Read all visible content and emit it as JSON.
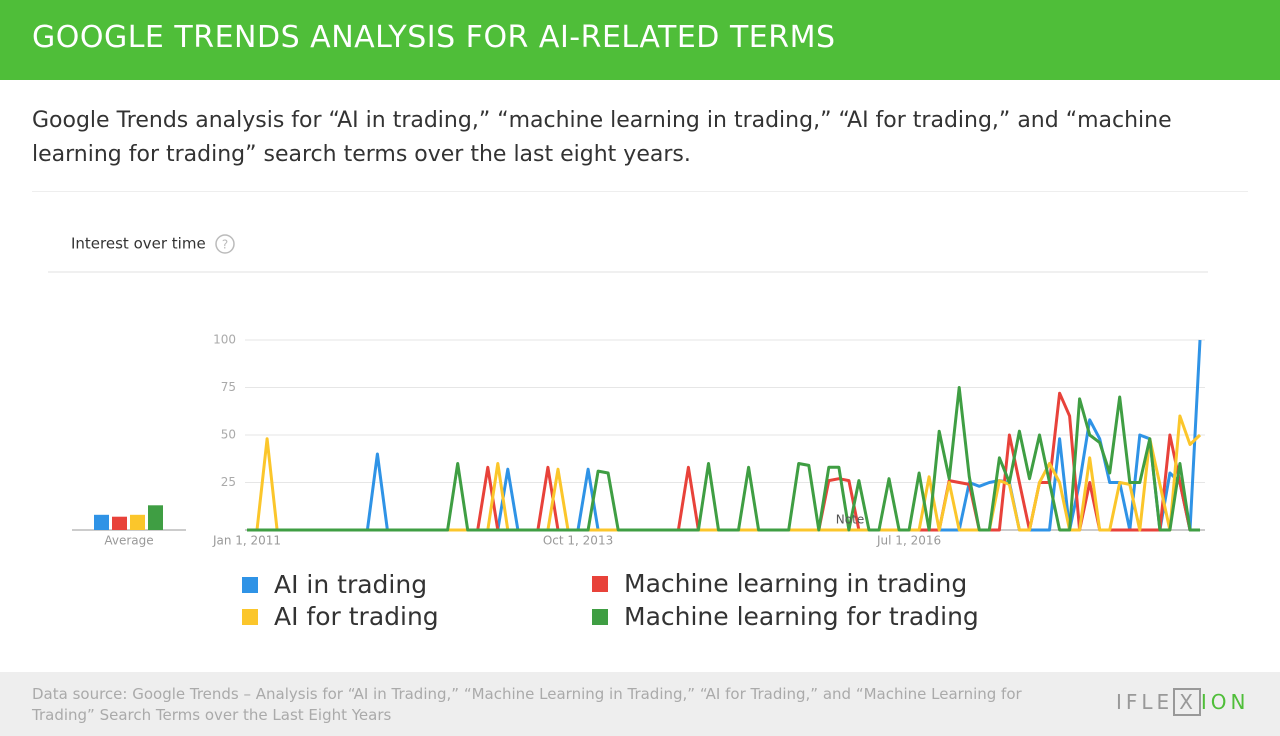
{
  "header": {
    "title": "GOOGLE TRENDS ANALYSIS FOR AI-RELATED TERMS"
  },
  "description": "Google Trends analysis for “AI in trading,” “machine learning in trading,” “AI for trading,” and “machine learning for trading” search terms over the last eight years.",
  "chart_data": {
    "type": "line",
    "label": "Interest over time",
    "annotation": "Note",
    "average_label": "Average",
    "categories": [
      "Jan 1, 2011",
      null,
      null,
      null,
      null,
      null,
      null,
      null,
      null,
      null,
      null,
      null,
      null,
      null,
      null,
      null,
      null,
      null,
      null,
      null,
      null,
      null,
      null,
      null,
      null,
      null,
      null,
      null,
      null,
      null,
      null,
      null,
      null,
      "Oct 1, 2013",
      null,
      null,
      null,
      null,
      null,
      null,
      null,
      null,
      null,
      null,
      null,
      null,
      null,
      null,
      null,
      null,
      null,
      null,
      null,
      null,
      null,
      null,
      null,
      null,
      null,
      null,
      null,
      null,
      null,
      null,
      null,
      null,
      "Jul 1, 2016",
      null,
      null,
      null,
      null,
      null,
      null,
      null,
      null,
      null,
      null,
      null,
      null,
      null,
      null,
      null,
      null,
      null,
      null,
      null,
      null,
      null,
      null,
      null,
      null,
      null,
      null,
      null,
      null,
      null
    ],
    "ylim": [
      0,
      100
    ],
    "yticks": [
      25,
      50,
      75,
      100
    ],
    "grid": true,
    "series": [
      {
        "name": "AI in trading",
        "color": "#2f93e6",
        "average": 8,
        "values": [
          0,
          0,
          0,
          0,
          0,
          0,
          0,
          0,
          0,
          0,
          0,
          0,
          0,
          40,
          0,
          0,
          0,
          0,
          0,
          0,
          0,
          0,
          0,
          0,
          0,
          0,
          32,
          0,
          0,
          0,
          0,
          0,
          0,
          0,
          32,
          0,
          0,
          0,
          0,
          0,
          0,
          0,
          0,
          0,
          0,
          0,
          0,
          0,
          0,
          0,
          0,
          0,
          0,
          0,
          0,
          0,
          0,
          0,
          0,
          0,
          0,
          0,
          0,
          0,
          0,
          0,
          0,
          0,
          0,
          0,
          0,
          0,
          25,
          23,
          25,
          26,
          25,
          0,
          0,
          0,
          0,
          48,
          0,
          25,
          58,
          48,
          25,
          25,
          0,
          50,
          48,
          0,
          30,
          25,
          0,
          100
        ]
      },
      {
        "name": "Machine learning in trading",
        "color": "#e8423a",
        "average": 7,
        "values": [
          0,
          0,
          0,
          0,
          0,
          0,
          0,
          0,
          0,
          0,
          0,
          0,
          0,
          0,
          0,
          0,
          0,
          0,
          0,
          0,
          0,
          0,
          0,
          0,
          33,
          0,
          0,
          0,
          0,
          0,
          33,
          0,
          0,
          0,
          0,
          0,
          0,
          0,
          0,
          0,
          0,
          0,
          0,
          0,
          33,
          0,
          0,
          0,
          0,
          0,
          0,
          0,
          0,
          0,
          0,
          0,
          0,
          0,
          26,
          27,
          26,
          0,
          0,
          0,
          0,
          0,
          0,
          0,
          0,
          0,
          26,
          25,
          24,
          0,
          0,
          0,
          50,
          25,
          0,
          25,
          25,
          72,
          60,
          0,
          25,
          0,
          0,
          0,
          0,
          0,
          0,
          0,
          50,
          25,
          0,
          0
        ]
      },
      {
        "name": "AI for trading",
        "color": "#fbc62b",
        "average": 8,
        "values": [
          0,
          0,
          48,
          0,
          0,
          0,
          0,
          0,
          0,
          0,
          0,
          0,
          0,
          0,
          0,
          0,
          0,
          0,
          0,
          0,
          0,
          0,
          0,
          0,
          0,
          35,
          0,
          0,
          0,
          0,
          0,
          32,
          0,
          0,
          0,
          0,
          0,
          0,
          0,
          0,
          0,
          0,
          0,
          0,
          0,
          0,
          0,
          0,
          0,
          0,
          0,
          0,
          0,
          0,
          0,
          0,
          0,
          0,
          0,
          0,
          0,
          0,
          0,
          0,
          0,
          0,
          0,
          0,
          28,
          0,
          25,
          0,
          0,
          0,
          0,
          26,
          24,
          0,
          0,
          25,
          35,
          25,
          0,
          0,
          38,
          0,
          0,
          25,
          24,
          0,
          48,
          24,
          0,
          60,
          45,
          50
        ]
      },
      {
        "name": "Machine learning for trading",
        "color": "#3f9e43",
        "average": 13,
        "values": [
          0,
          0,
          0,
          0,
          0,
          0,
          0,
          0,
          0,
          0,
          0,
          0,
          0,
          0,
          0,
          0,
          0,
          0,
          0,
          0,
          0,
          35,
          0,
          0,
          0,
          0,
          0,
          0,
          0,
          0,
          0,
          0,
          0,
          0,
          0,
          31,
          30,
          0,
          0,
          0,
          0,
          0,
          0,
          0,
          0,
          0,
          35,
          0,
          0,
          0,
          33,
          0,
          0,
          0,
          0,
          35,
          34,
          0,
          33,
          33,
          0,
          26,
          0,
          0,
          27,
          0,
          0,
          30,
          0,
          52,
          27,
          75,
          28,
          0,
          0,
          38,
          25,
          52,
          27,
          50,
          25,
          0,
          0,
          69,
          50,
          46,
          30,
          70,
          25,
          25,
          48,
          0,
          0,
          35,
          0,
          0
        ]
      }
    ]
  },
  "footer": {
    "source": "Data source: Google Trends – Analysis for “AI in Trading,” “Machine Learning in Trading,” “AI for Trading,” and “Machine Learning for Trading” Search Terms over the Last Eight Years",
    "logo": [
      "IFLE",
      "X",
      "ION"
    ]
  }
}
